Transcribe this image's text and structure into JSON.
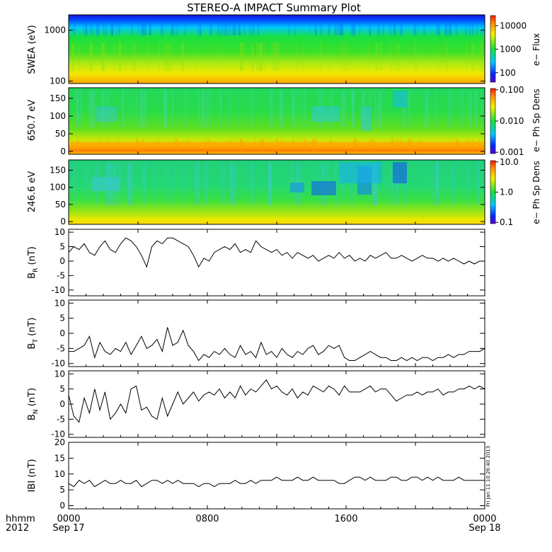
{
  "chart_data": {
    "type": "line",
    "title": "STEREO-A IMPACT Summary Plot",
    "time_axis": {
      "label_line1": "hhmm",
      "label_line2": "2012",
      "ticks": [
        {
          "hours": 0,
          "label": "0000",
          "sublabel": "Sep 17"
        },
        {
          "hours": 8,
          "label": "0800",
          "sublabel": ""
        },
        {
          "hours": 16,
          "label": "1600",
          "sublabel": ""
        },
        {
          "hours": 24,
          "label": "0000",
          "sublabel": "Sep 18"
        }
      ],
      "range_hours": [
        0,
        24
      ]
    },
    "spectrograms": [
      {
        "id": "swea",
        "ylabel": "SWEA (eV)",
        "yscale": "log",
        "ylim": [
          90,
          2000
        ],
        "yticks": [
          {
            "value": 100,
            "label": "100"
          },
          {
            "value": 1000,
            "label": "1000"
          }
        ],
        "colorbar_label": "e− Flux",
        "colorbar_scale": "log",
        "colorbar_ticks": [
          "100",
          "1000",
          "10000"
        ]
      },
      {
        "id": "pad650",
        "ylabel": "650.7 eV",
        "yscale": "linear",
        "ylim": [
          -8,
          180
        ],
        "yticks": [
          {
            "value": 0,
            "label": "0"
          },
          {
            "value": 50,
            "label": "50"
          },
          {
            "value": 100,
            "label": "100"
          },
          {
            "value": 150,
            "label": "150"
          }
        ],
        "colorbar_label": "e− Ph Sp Dens",
        "colorbar_scale": "log",
        "colorbar_ticks": [
          "0.001",
          "0.010",
          "0.100"
        ]
      },
      {
        "id": "pad246",
        "ylabel": "246.6 eV",
        "yscale": "linear",
        "ylim": [
          -8,
          180
        ],
        "yticks": [
          {
            "value": 0,
            "label": "0"
          },
          {
            "value": 50,
            "label": "50"
          },
          {
            "value": 100,
            "label": "100"
          },
          {
            "value": 150,
            "label": "150"
          }
        ],
        "colorbar_label": "e− Ph Sp Dens",
        "colorbar_scale": "log",
        "colorbar_ticks": [
          "0.1",
          "1.0",
          "10.0"
        ]
      }
    ],
    "series": [
      {
        "name": "BR",
        "ylabel_main": "B",
        "ylabel_sub": "R",
        "ylabel_unit": "(nT)",
        "ylim": [
          -12,
          11
        ],
        "yticks": [
          -10,
          -5,
          0,
          5,
          10
        ],
        "x": [
          0,
          0.3,
          0.6,
          0.9,
          1.2,
          1.5,
          1.8,
          2.1,
          2.4,
          2.7,
          3.0,
          3.3,
          3.6,
          3.9,
          4.2,
          4.5,
          4.8,
          5.1,
          5.4,
          5.7,
          6.0,
          6.3,
          6.6,
          6.9,
          7.2,
          7.5,
          7.8,
          8.1,
          8.4,
          8.7,
          9.0,
          9.3,
          9.6,
          9.9,
          10.2,
          10.5,
          10.8,
          11.1,
          11.4,
          11.7,
          12.0,
          12.3,
          12.6,
          12.9,
          13.2,
          13.5,
          13.8,
          14.1,
          14.4,
          14.7,
          15.0,
          15.3,
          15.6,
          15.9,
          16.2,
          16.5,
          16.8,
          17.1,
          17.4,
          17.7,
          18.0,
          18.3,
          18.6,
          18.9,
          19.2,
          19.5,
          19.8,
          20.1,
          20.4,
          20.7,
          21.0,
          21.3,
          21.6,
          21.9,
          22.2,
          22.5,
          22.8,
          23.1,
          23.4,
          23.7,
          24.0
        ],
        "values": [
          3,
          5,
          4,
          6,
          3,
          2,
          5,
          7,
          4,
          3,
          6,
          8,
          7,
          5,
          2,
          -2,
          5,
          7,
          6,
          8,
          8,
          7,
          6,
          5,
          2,
          -2,
          1,
          0,
          3,
          4,
          5,
          4,
          6,
          3,
          4,
          3,
          7,
          5,
          4,
          3,
          4,
          2,
          3,
          1,
          3,
          2,
          1,
          2,
          0,
          1,
          2,
          1,
          3,
          1,
          2,
          0,
          1,
          0,
          2,
          1,
          2,
          3,
          1,
          1,
          2,
          1,
          0,
          1,
          2,
          1,
          1,
          0,
          1,
          0,
          1,
          0,
          -1,
          0,
          -1,
          0,
          0
        ]
      },
      {
        "name": "BT",
        "ylabel_main": "B",
        "ylabel_sub": "T",
        "ylabel_unit": "(nT)",
        "ylim": [
          -11,
          11
        ],
        "yticks": [
          -10,
          -5,
          0,
          5,
          10
        ],
        "x": [
          0,
          0.3,
          0.6,
          0.9,
          1.2,
          1.5,
          1.8,
          2.1,
          2.4,
          2.7,
          3.0,
          3.3,
          3.6,
          3.9,
          4.2,
          4.5,
          4.8,
          5.1,
          5.4,
          5.7,
          6.0,
          6.3,
          6.6,
          6.9,
          7.2,
          7.5,
          7.8,
          8.1,
          8.4,
          8.7,
          9.0,
          9.3,
          9.6,
          9.9,
          10.2,
          10.5,
          10.8,
          11.1,
          11.4,
          11.7,
          12.0,
          12.3,
          12.6,
          12.9,
          13.2,
          13.5,
          13.8,
          14.1,
          14.4,
          14.7,
          15.0,
          15.3,
          15.6,
          15.9,
          16.2,
          16.5,
          16.8,
          17.1,
          17.4,
          17.7,
          18.0,
          18.3,
          18.6,
          18.9,
          19.2,
          19.5,
          19.8,
          20.1,
          20.4,
          20.7,
          21.0,
          21.3,
          21.6,
          21.9,
          22.2,
          22.5,
          22.8,
          23.1,
          23.4,
          23.7,
          24.0
        ],
        "values": [
          -6,
          -6,
          -5,
          -4,
          -1,
          -8,
          -3,
          -6,
          -7,
          -5,
          -6,
          -3,
          -7,
          -4,
          -1,
          -5,
          -4,
          -2,
          -6,
          2,
          -4,
          -3,
          1,
          -4,
          -6,
          -9,
          -7,
          -8,
          -6,
          -7,
          -5,
          -7,
          -8,
          -4,
          -7,
          -6,
          -8,
          -3,
          -7,
          -6,
          -8,
          -5,
          -7,
          -8,
          -6,
          -7,
          -5,
          -4,
          -7,
          -6,
          -4,
          -5,
          -4,
          -8,
          -9,
          -9,
          -8,
          -7,
          -6,
          -7,
          -8,
          -8,
          -9,
          -9,
          -8,
          -9,
          -8,
          -9,
          -8,
          -8,
          -9,
          -8,
          -8,
          -7,
          -8,
          -7,
          -7,
          -6,
          -6,
          -6,
          -5
        ]
      },
      {
        "name": "BN",
        "ylabel_main": "B",
        "ylabel_sub": "N",
        "ylabel_unit": "(nT)",
        "ylim": [
          -11,
          11
        ],
        "yticks": [
          -10,
          -5,
          0,
          5,
          10
        ],
        "x": [
          0,
          0.3,
          0.6,
          0.9,
          1.2,
          1.5,
          1.8,
          2.1,
          2.4,
          2.7,
          3.0,
          3.3,
          3.6,
          3.9,
          4.2,
          4.5,
          4.8,
          5.1,
          5.4,
          5.7,
          6.0,
          6.3,
          6.6,
          6.9,
          7.2,
          7.5,
          7.8,
          8.1,
          8.4,
          8.7,
          9.0,
          9.3,
          9.6,
          9.9,
          10.2,
          10.5,
          10.8,
          11.1,
          11.4,
          11.7,
          12.0,
          12.3,
          12.6,
          12.9,
          13.2,
          13.5,
          13.8,
          14.1,
          14.4,
          14.7,
          15.0,
          15.3,
          15.6,
          15.9,
          16.2,
          16.5,
          16.8,
          17.1,
          17.4,
          17.7,
          18.0,
          18.3,
          18.6,
          18.9,
          19.2,
          19.5,
          19.8,
          20.1,
          20.4,
          20.7,
          21.0,
          21.3,
          21.6,
          21.9,
          22.2,
          22.5,
          22.8,
          23.1,
          23.4,
          23.7,
          24.0
        ],
        "values": [
          3,
          -4,
          -6,
          2,
          -3,
          5,
          -2,
          4,
          -5,
          -3,
          0,
          -3,
          5,
          6,
          -2,
          -1,
          -4,
          -5,
          2,
          -4,
          0,
          4,
          0,
          2,
          4,
          1,
          3,
          4,
          3,
          5,
          2,
          4,
          2,
          6,
          3,
          5,
          4,
          6,
          8,
          5,
          6,
          4,
          3,
          5,
          2,
          4,
          3,
          6,
          5,
          4,
          6,
          5,
          3,
          6,
          4,
          4,
          4,
          5,
          6,
          4,
          5,
          5,
          3,
          1,
          2,
          3,
          3,
          4,
          3,
          4,
          4,
          5,
          3,
          4,
          4,
          5,
          5,
          6,
          5,
          6,
          5
        ]
      },
      {
        "name": "|B|",
        "ylabel_main": "IBI",
        "ylabel_sub": "",
        "ylabel_unit": "(nT)",
        "ylim": [
          -1,
          20
        ],
        "yticks": [
          0,
          5,
          10,
          15,
          20
        ],
        "x": [
          0,
          0.3,
          0.6,
          0.9,
          1.2,
          1.5,
          1.8,
          2.1,
          2.4,
          2.7,
          3.0,
          3.3,
          3.6,
          3.9,
          4.2,
          4.5,
          4.8,
          5.1,
          5.4,
          5.7,
          6.0,
          6.3,
          6.6,
          6.9,
          7.2,
          7.5,
          7.8,
          8.1,
          8.4,
          8.7,
          9.0,
          9.3,
          9.6,
          9.9,
          10.2,
          10.5,
          10.8,
          11.1,
          11.4,
          11.7,
          12.0,
          12.3,
          12.6,
          12.9,
          13.2,
          13.5,
          13.8,
          14.1,
          14.4,
          14.7,
          15.0,
          15.3,
          15.6,
          15.9,
          16.2,
          16.5,
          16.8,
          17.1,
          17.4,
          17.7,
          18.0,
          18.3,
          18.6,
          18.9,
          19.2,
          19.5,
          19.8,
          20.1,
          20.4,
          20.7,
          21.0,
          21.3,
          21.6,
          21.9,
          22.2,
          22.5,
          22.8,
          23.1,
          23.4,
          23.7,
          24.0
        ],
        "values": [
          7,
          6,
          8,
          7,
          8,
          6,
          7,
          8,
          7,
          7,
          8,
          7,
          7,
          8,
          6,
          7,
          8,
          8,
          7,
          8,
          7,
          8,
          7,
          7,
          7,
          6,
          7,
          7,
          6,
          7,
          7,
          7,
          8,
          7,
          7,
          8,
          7,
          8,
          8,
          8,
          9,
          8,
          8,
          8,
          9,
          8,
          8,
          9,
          8,
          8,
          8,
          8,
          7,
          7,
          8,
          9,
          9,
          8,
          9,
          8,
          8,
          8,
          9,
          9,
          8,
          8,
          9,
          9,
          8,
          9,
          8,
          9,
          8,
          8,
          8,
          9,
          8,
          8,
          8,
          8,
          8
        ]
      }
    ],
    "side_note": "Fri Jan 11 10:26:40 2013"
  },
  "colors": {
    "frame": "#000000",
    "line": "#000000",
    "background": "#ffffff"
  }
}
